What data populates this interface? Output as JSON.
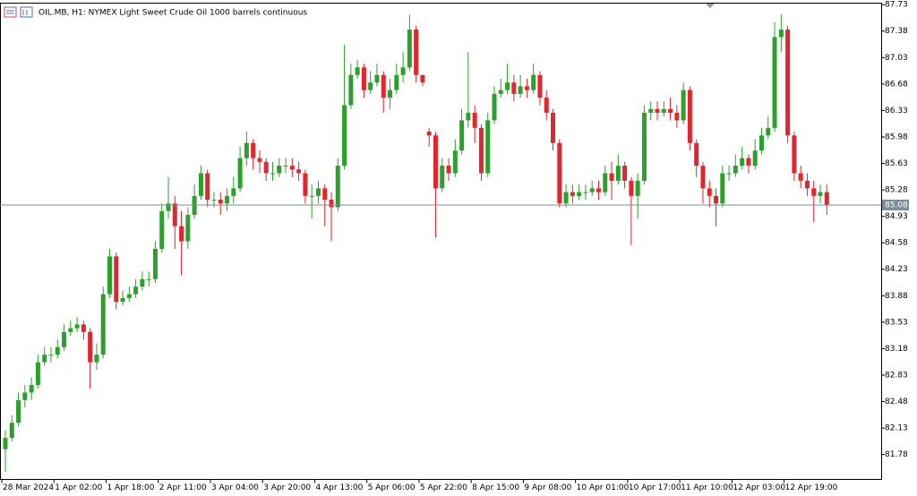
{
  "chart_data": {
    "type": "candlestick",
    "title": "OIL.MB, H1:  NYMEX Light Sweet Crude Oil 1000 barrels continuous",
    "categories": [
      "28 Mar 2024",
      null,
      null,
      null,
      null,
      null,
      null,
      null,
      "1 Apr 02:00",
      null,
      null,
      null,
      null,
      null,
      null,
      null,
      "1 Apr 18:00",
      null,
      null,
      null,
      null,
      null,
      null,
      null,
      "2 Apr 11:00",
      null,
      null,
      null,
      null,
      null,
      null,
      null,
      "3 Apr 04:00",
      null,
      null,
      null,
      null,
      null,
      null,
      null,
      "3 Apr 20:00",
      null,
      null,
      null,
      null,
      null,
      null,
      null,
      "4 Apr 13:00",
      null,
      null,
      null,
      null,
      null,
      null,
      null,
      "5 Apr 06:00",
      null,
      null,
      null,
      null,
      null,
      null,
      null,
      "5 Apr 22:00",
      null,
      null,
      null,
      null,
      null,
      null,
      null,
      "8 Apr 15:00",
      null,
      null,
      null,
      null,
      null,
      null,
      null,
      "9 Apr 08:00",
      null,
      null,
      null,
      null,
      null,
      null,
      null,
      "10 Apr 01:00",
      null,
      null,
      null,
      null,
      null,
      null,
      null,
      "10 Apr 17:00",
      null,
      null,
      null,
      null,
      null,
      null,
      null,
      "11 Apr 10:00",
      null,
      null,
      null,
      null,
      null,
      null,
      null,
      "12 Apr 03:00",
      null,
      null,
      null,
      null,
      null,
      null,
      null,
      "12 Apr 19:00",
      null,
      null,
      null,
      null,
      null,
      null
    ],
    "open": [
      81.85,
      82.0,
      82.2,
      82.5,
      82.6,
      82.7,
      83.0,
      83.1,
      83.1,
      83.2,
      83.4,
      83.45,
      83.5,
      83.4,
      83.0,
      83.1,
      83.9,
      84.4,
      83.8,
      83.85,
      83.9,
      84.0,
      84.1,
      84.1,
      84.5,
      85.0,
      85.1,
      84.8,
      84.6,
      84.95,
      85.2,
      85.5,
      85.15,
      85.15,
      85.1,
      85.2,
      85.3,
      85.7,
      85.9,
      85.7,
      85.65,
      85.5,
      85.5,
      85.6,
      85.6,
      85.55,
      85.5,
      85.2,
      85.2,
      85.3,
      85.15,
      85.05,
      85.6,
      86.4,
      86.8,
      86.9,
      86.6,
      86.7,
      86.8,
      86.5,
      86.6,
      86.8,
      86.9,
      87.4,
      86.8,
      86.05,
      86.0,
      85.3,
      85.6,
      85.5,
      85.8,
      86.2,
      86.3,
      86.1,
      85.5,
      86.2,
      86.55,
      86.6,
      86.7,
      86.55,
      86.65,
      86.6,
      86.8,
      86.5,
      86.3,
      85.9,
      85.1,
      85.25,
      85.2,
      85.25,
      85.25,
      85.3,
      85.25,
      85.5,
      85.4,
      85.6,
      85.4,
      85.2,
      85.4,
      86.3,
      86.35,
      86.3,
      86.35,
      86.3,
      86.2,
      86.6,
      85.9,
      85.6,
      85.3,
      85.2,
      85.1,
      85.5,
      85.5,
      85.6,
      85.7,
      85.6,
      85.8,
      86.0,
      86.1,
      87.3,
      87.4,
      86.0,
      85.5,
      85.4,
      85.3,
      85.2,
      85.25
    ],
    "high": [
      82.1,
      82.3,
      82.6,
      82.7,
      82.8,
      83.1,
      83.2,
      83.2,
      83.3,
      83.5,
      83.55,
      83.6,
      83.55,
      83.45,
      83.25,
      84.0,
      84.5,
      84.45,
      83.95,
      84.0,
      84.1,
      84.2,
      84.2,
      84.6,
      85.1,
      85.45,
      85.2,
      85.0,
      85.05,
      85.35,
      85.6,
      85.55,
      85.25,
      85.25,
      85.3,
      85.45,
      85.85,
      86.05,
      85.95,
      85.8,
      85.7,
      85.65,
      85.7,
      85.7,
      85.7,
      85.65,
      85.55,
      85.35,
      85.4,
      85.35,
      85.25,
      85.7,
      87.2,
      86.95,
      87.0,
      86.95,
      86.85,
      86.95,
      86.85,
      86.75,
      86.95,
      87.1,
      87.6,
      87.45,
      86.8,
      86.1,
      86.05,
      85.7,
      85.7,
      85.95,
      86.35,
      87.1,
      86.4,
      86.15,
      86.3,
      86.65,
      86.75,
      86.95,
      86.8,
      86.8,
      86.75,
      86.95,
      86.85,
      86.6,
      86.35,
      85.95,
      85.35,
      85.35,
      85.35,
      85.35,
      85.4,
      85.4,
      85.6,
      85.65,
      85.75,
      85.65,
      85.45,
      85.5,
      86.4,
      86.45,
      86.45,
      86.45,
      86.5,
      86.4,
      86.7,
      86.65,
      85.95,
      85.65,
      85.4,
      85.3,
      85.6,
      85.6,
      85.75,
      85.85,
      85.75,
      85.95,
      86.1,
      86.25,
      87.5,
      87.6,
      87.45,
      86.05,
      85.6,
      85.5,
      85.4,
      85.35,
      85.35
    ],
    "low": [
      81.55,
      81.95,
      82.15,
      82.4,
      82.5,
      82.65,
      82.95,
      83.0,
      83.05,
      83.15,
      83.35,
      83.4,
      83.3,
      82.65,
      82.9,
      83.05,
      83.85,
      83.7,
      83.75,
      83.8,
      83.85,
      83.95,
      84.0,
      84.05,
      84.45,
      84.9,
      84.5,
      84.15,
      84.5,
      84.9,
      85.15,
      85.05,
      85.05,
      84.95,
      85.0,
      85.1,
      85.25,
      85.6,
      85.55,
      85.5,
      85.4,
      85.4,
      85.45,
      85.5,
      85.45,
      85.4,
      85.1,
      84.9,
      85.1,
      84.8,
      84.6,
      85.0,
      85.55,
      86.35,
      86.75,
      86.5,
      86.55,
      86.65,
      86.3,
      86.35,
      86.55,
      86.7,
      86.85,
      86.7,
      86.65,
      85.85,
      84.65,
      85.25,
      85.4,
      85.45,
      85.75,
      86.1,
      85.9,
      85.4,
      85.45,
      86.15,
      86.5,
      86.55,
      86.45,
      86.5,
      86.5,
      86.55,
      86.4,
      86.2,
      85.8,
      85.05,
      85.05,
      85.1,
      85.15,
      85.15,
      85.2,
      85.15,
      85.2,
      85.15,
      85.35,
      85.3,
      84.55,
      84.9,
      85.35,
      86.2,
      86.2,
      86.25,
      86.2,
      86.1,
      86.15,
      85.8,
      85.45,
      85.1,
      85.05,
      84.8,
      85.05,
      85.4,
      85.45,
      85.55,
      85.5,
      85.55,
      85.75,
      85.95,
      86.05,
      87.1,
      85.9,
      85.4,
      85.3,
      85.2,
      84.85,
      85.1,
      84.95
    ],
    "close": [
      82.0,
      82.2,
      82.5,
      82.6,
      82.7,
      83.0,
      83.1,
      83.1,
      83.2,
      83.4,
      83.45,
      83.5,
      83.4,
      83.0,
      83.1,
      83.9,
      84.4,
      83.8,
      83.85,
      83.9,
      84.0,
      84.1,
      84.1,
      84.5,
      85.0,
      85.1,
      84.8,
      84.6,
      84.95,
      85.2,
      85.5,
      85.15,
      85.15,
      85.1,
      85.2,
      85.3,
      85.7,
      85.9,
      85.7,
      85.65,
      85.5,
      85.5,
      85.6,
      85.6,
      85.55,
      85.5,
      85.2,
      85.2,
      85.3,
      85.15,
      85.05,
      85.6,
      86.4,
      86.8,
      86.9,
      86.6,
      86.7,
      86.8,
      86.5,
      86.6,
      86.8,
      86.9,
      87.4,
      86.8,
      86.7,
      86.0,
      85.3,
      85.6,
      85.5,
      85.8,
      86.2,
      86.3,
      86.1,
      85.5,
      86.2,
      86.55,
      86.6,
      86.7,
      86.55,
      86.65,
      86.6,
      86.8,
      86.5,
      86.3,
      85.9,
      85.1,
      85.25,
      85.2,
      85.25,
      85.25,
      85.3,
      85.25,
      85.5,
      85.4,
      85.6,
      85.4,
      85.2,
      85.4,
      86.3,
      86.35,
      86.3,
      86.35,
      86.3,
      86.2,
      86.6,
      85.9,
      85.6,
      85.3,
      85.2,
      85.1,
      85.5,
      85.5,
      85.6,
      85.7,
      85.6,
      85.8,
      86.0,
      86.1,
      87.3,
      87.4,
      86.0,
      85.5,
      85.4,
      85.3,
      85.2,
      85.25,
      85.08
    ],
    "up_color": "#2ca02c",
    "down_color": "#e0262e",
    "current_price": 85.08,
    "ylim": [
      81.45,
      87.75
    ],
    "yticks": [
      87.73,
      87.38,
      87.03,
      86.68,
      86.33,
      85.98,
      85.63,
      85.28,
      84.93,
      84.58,
      84.23,
      83.88,
      83.53,
      83.18,
      82.83,
      82.48,
      82.13,
      81.78
    ]
  }
}
